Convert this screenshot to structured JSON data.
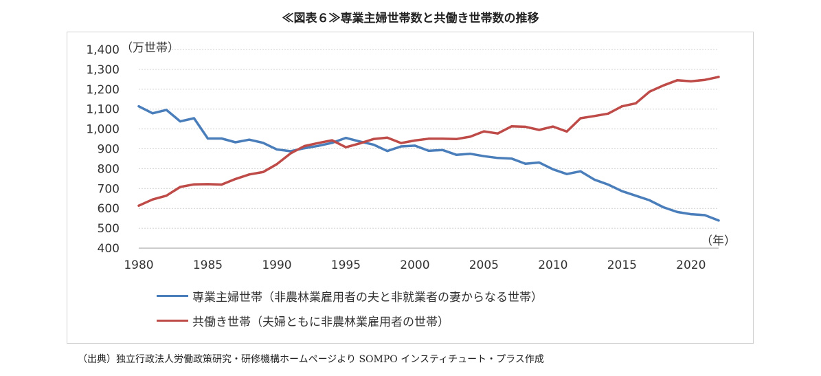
{
  "title": "≪図表６≫専業主婦世帯数と共働き世帯数の推移",
  "source": "（出典）独立行政法人労働政策研究・研修機構ホームページより SOMPO インスティチュート・プラス作成",
  "chart_data": {
    "type": "line",
    "ylabel": "（万世帯）",
    "xlabel": "（年）",
    "ylim": [
      400,
      1400
    ],
    "yticks": [
      "400",
      "500",
      "600",
      "700",
      "800",
      "900",
      "1,000",
      "1,100",
      "1,200",
      "1,300",
      "1,400"
    ],
    "xlim": [
      1980,
      2022
    ],
    "xticks": [
      "1980",
      "1985",
      "1990",
      "1995",
      "2000",
      "2005",
      "2010",
      "2015",
      "2020"
    ],
    "grid": "horizontal",
    "legend_position": "bottom",
    "x": [
      1980,
      1981,
      1982,
      1983,
      1984,
      1985,
      1986,
      1987,
      1988,
      1989,
      1990,
      1991,
      1992,
      1993,
      1994,
      1995,
      1996,
      1997,
      1998,
      1999,
      2000,
      2001,
      2002,
      2003,
      2004,
      2005,
      2006,
      2007,
      2008,
      2009,
      2010,
      2011,
      2012,
      2013,
      2014,
      2015,
      2016,
      2017,
      2018,
      2019,
      2020,
      2021,
      2022
    ],
    "series": [
      {
        "name": "専業主婦世帯（非農林業雇用者の夫と非就業者の妻からなる世帯）",
        "color": "#4a7ebb",
        "values": [
          1114,
          1079,
          1096,
          1038,
          1054,
          952,
          952,
          933,
          946,
          930,
          897,
          888,
          903,
          915,
          930,
          955,
          937,
          921,
          889,
          912,
          916,
          890,
          894,
          870,
          875,
          863,
          854,
          851,
          825,
          831,
          797,
          773,
          787,
          745,
          720,
          687,
          664,
          641,
          606,
          582,
          571,
          566,
          539
        ]
      },
      {
        "name": "共働き世帯（夫婦ともに非農林業雇用者の世帯）",
        "color": "#be4b48",
        "values": [
          614,
          645,
          664,
          708,
          721,
          722,
          720,
          748,
          771,
          783,
          823,
          877,
          914,
          929,
          943,
          908,
          927,
          949,
          956,
          929,
          942,
          951,
          951,
          949,
          961,
          988,
          977,
          1013,
          1011,
          995,
          1012,
          987,
          1054,
          1065,
          1077,
          1114,
          1129,
          1188,
          1219,
          1245,
          1240,
          1247,
          1262
        ]
      }
    ]
  }
}
